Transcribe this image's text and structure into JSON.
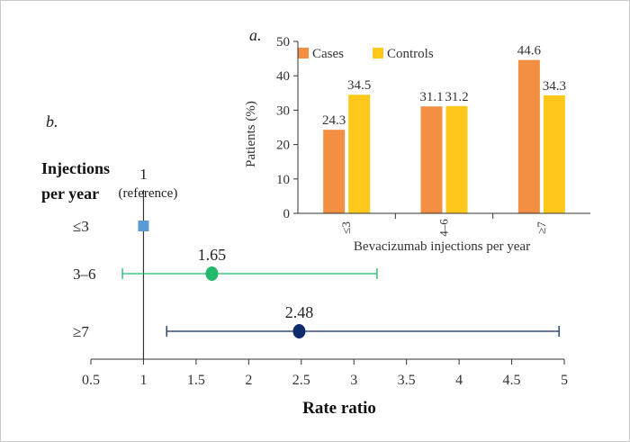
{
  "chart_data": [
    {
      "panel_label": "a.",
      "type": "bar",
      "categories": [
        "≤3",
        "4–6",
        "≥7"
      ],
      "series": [
        {
          "name": "Cases",
          "values": [
            24.3,
            31.1,
            44.6
          ],
          "color": "#F28F43"
        },
        {
          "name": "Controls",
          "values": [
            34.5,
            31.2,
            34.3
          ],
          "color": "#FFC81A"
        }
      ],
      "value_labels": [
        [
          "24.3",
          "31.1",
          "44.6"
        ],
        [
          "34.5",
          "31.2",
          "34.3"
        ]
      ],
      "xlabel": "Bevacizumab injections per year",
      "ylabel": "Patients (%)",
      "ylim": [
        0,
        50
      ],
      "yticks": [
        "0",
        "10",
        "20",
        "30",
        "40",
        "50"
      ],
      "legend": "top-left",
      "grid": false
    },
    {
      "panel_label": "b.",
      "type": "forest",
      "ylabel_line1": "Injections",
      "ylabel_line2": "per year",
      "xlabel": "Rate ratio",
      "xlim": [
        0.5,
        5
      ],
      "xticks": [
        "0.5",
        "1",
        "1.5",
        "2",
        "2.5",
        "3",
        "3.5",
        "4",
        "4.5",
        "5"
      ],
      "reference_value": 1,
      "rows": [
        {
          "label": "≤3",
          "estimate": 1,
          "ci_low": null,
          "ci_high": null,
          "color": "#5B9BD5",
          "marker": "square",
          "value_label": "1",
          "note": "(reference)"
        },
        {
          "label": "3–6",
          "estimate": 1.65,
          "ci_low": 0.8,
          "ci_high": 3.22,
          "color": "#23B86A",
          "marker": "circle",
          "value_label": "1.65"
        },
        {
          "label": "≥7",
          "estimate": 2.48,
          "ci_low": 1.22,
          "ci_high": 4.95,
          "color": "#0F2B6B",
          "marker": "circle",
          "value_label": "2.48"
        }
      ]
    }
  ]
}
